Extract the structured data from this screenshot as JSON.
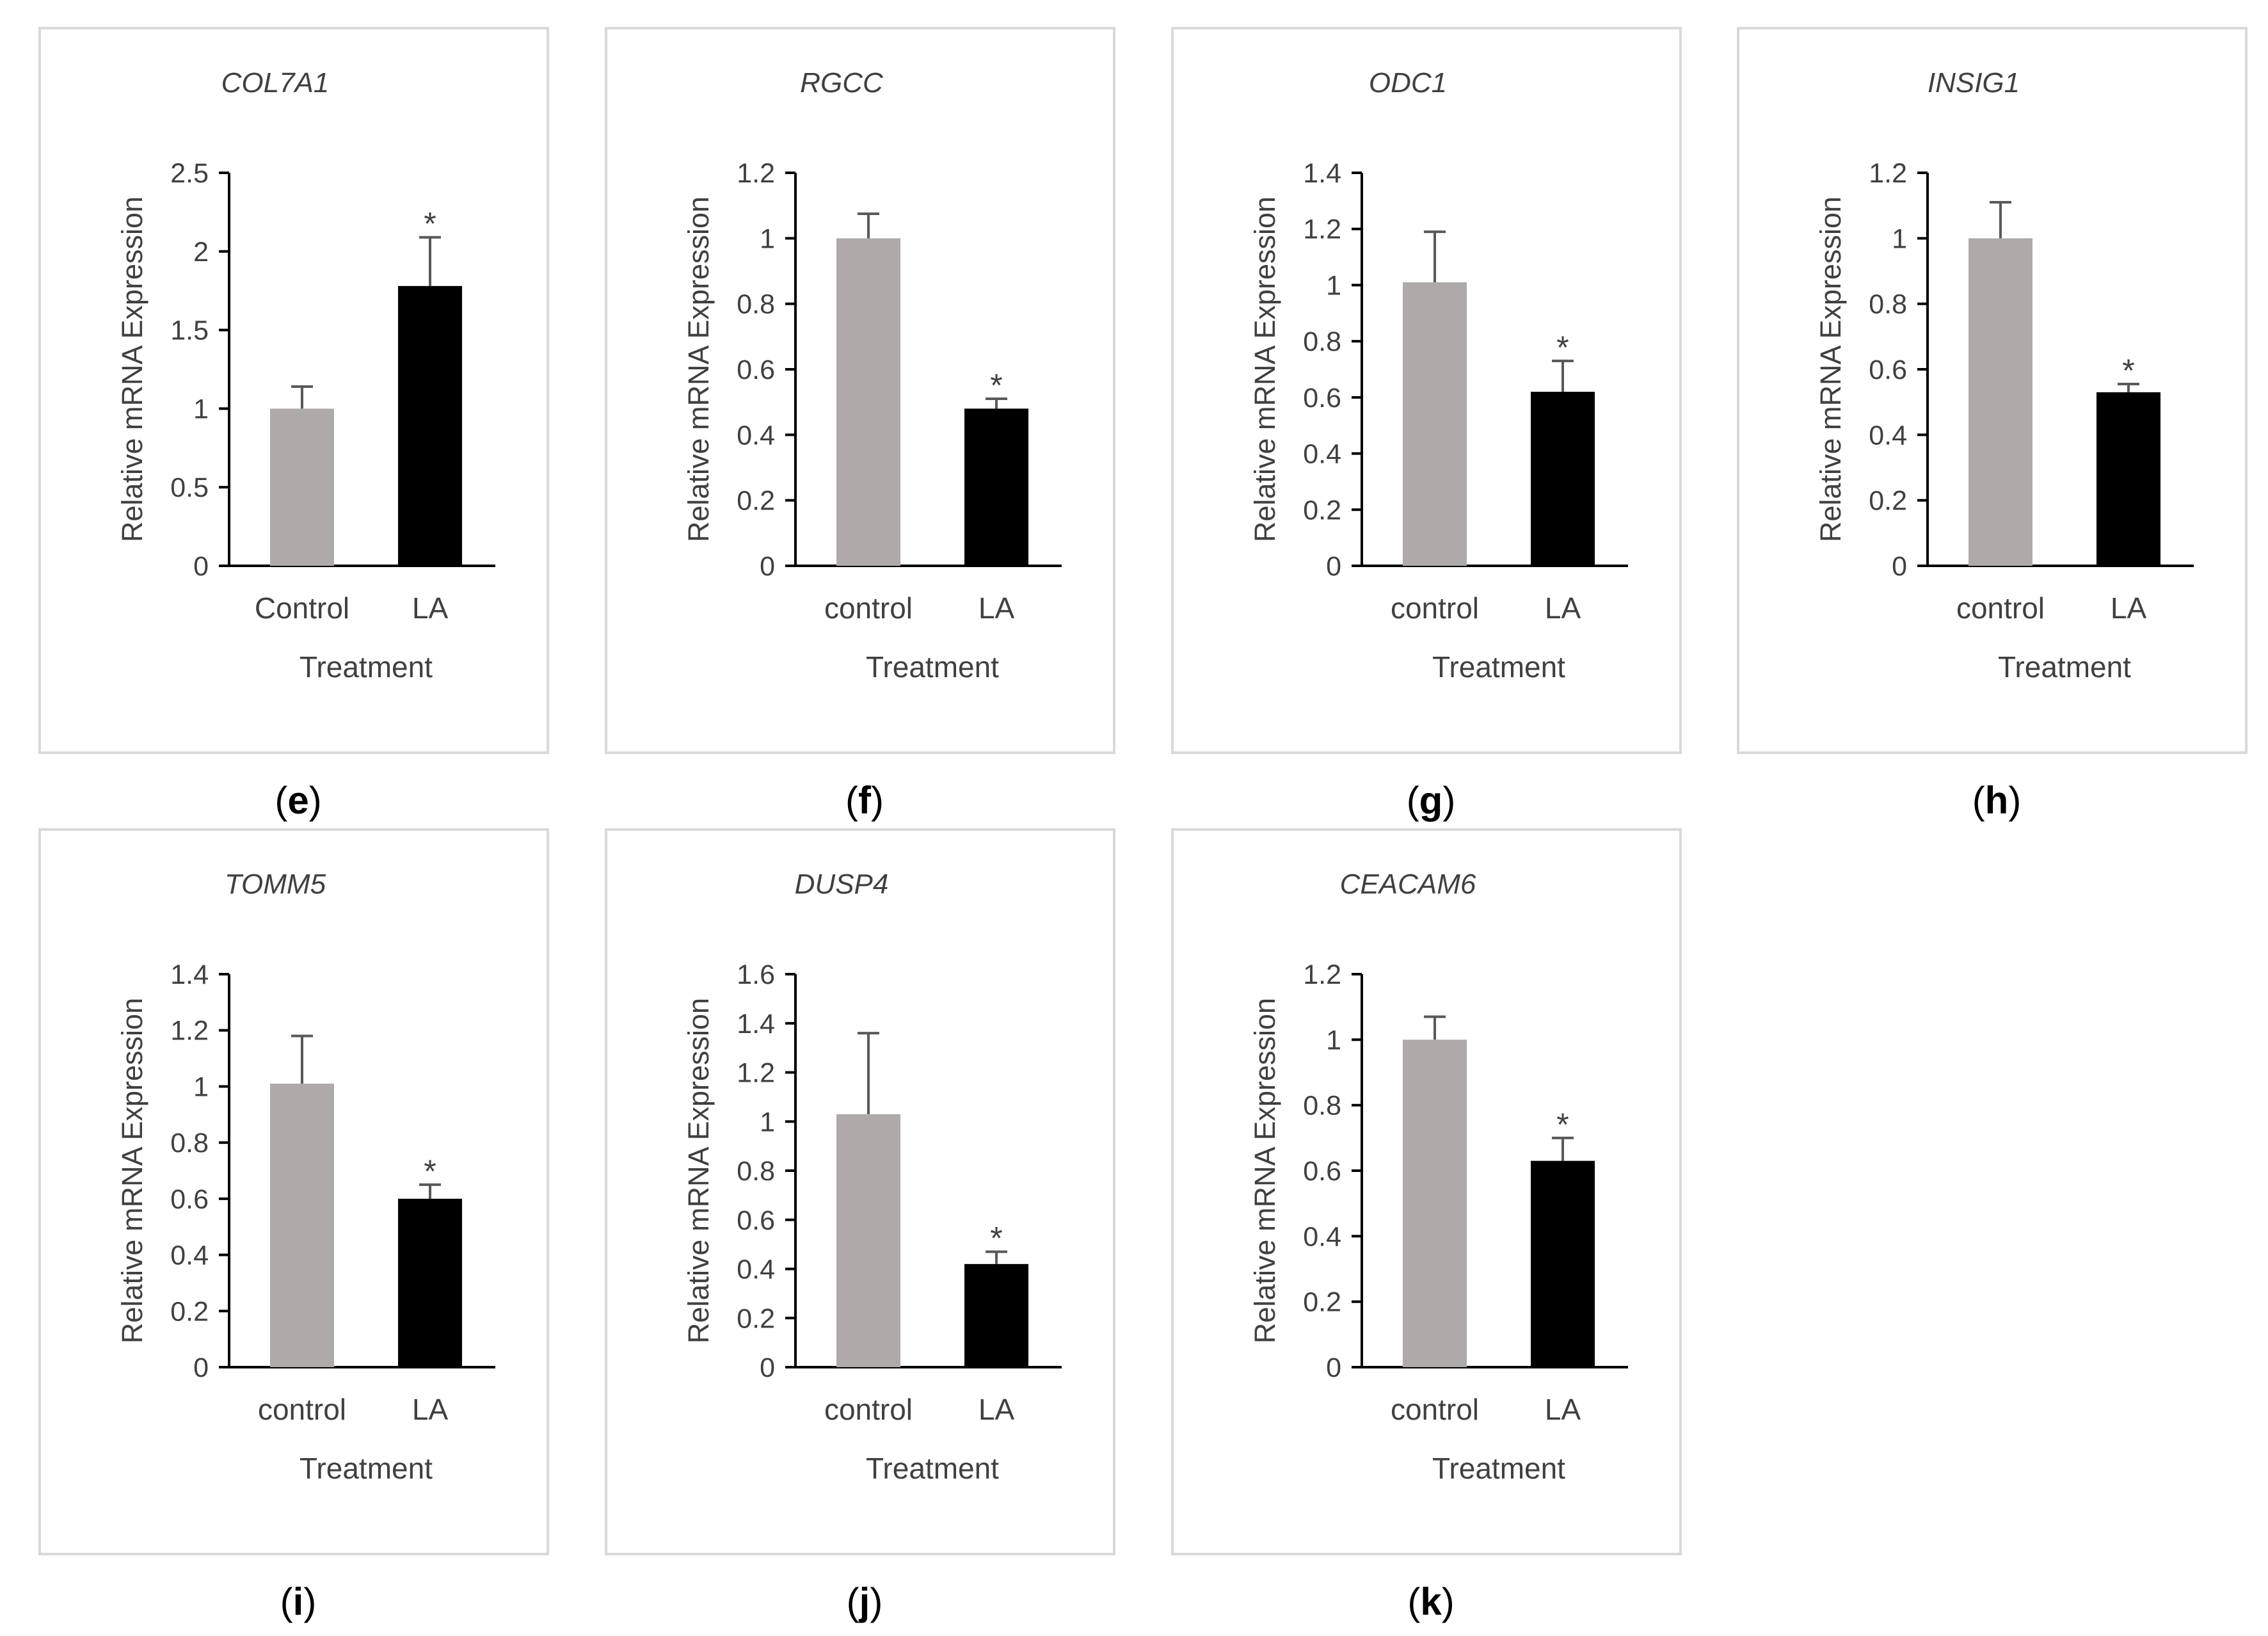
{
  "colors": {
    "control_bar": "#aeaaaa",
    "la_bar": "#000000",
    "axis": "#000000",
    "text": "#404040",
    "panel_border": "#d9d9d9",
    "error_bar": "#595959"
  },
  "chart_data": [
    {
      "type": "bar",
      "panel_label": "e",
      "title": "COL7A1",
      "categories": [
        "Control",
        "LA"
      ],
      "values": [
        1.0,
        1.78
      ],
      "errors": [
        0.14,
        0.31
      ],
      "significance": [
        "",
        "*"
      ],
      "xlabel": "Treatment",
      "ylabel": "Relative mRNA Expression",
      "ylim": [
        0,
        2.5
      ],
      "yticks": [
        "0",
        "0.5",
        "1",
        "1.5",
        "2",
        "2.5"
      ],
      "ytick_step": 0.5
    },
    {
      "type": "bar",
      "panel_label": "f",
      "title": "RGCC",
      "categories": [
        "control",
        "LA"
      ],
      "values": [
        1.0,
        0.48
      ],
      "errors": [
        0.075,
        0.03
      ],
      "significance": [
        "",
        "*"
      ],
      "xlabel": "Treatment",
      "ylabel": "Relative mRNA Expression",
      "ylim": [
        0,
        1.2
      ],
      "yticks": [
        "0",
        "0.2",
        "0.4",
        "0.6",
        "0.8",
        "1",
        "1.2"
      ],
      "ytick_step": 0.2
    },
    {
      "type": "bar",
      "panel_label": "g",
      "title": "ODC1",
      "categories": [
        "control",
        "LA"
      ],
      "values": [
        1.01,
        0.62
      ],
      "errors": [
        0.18,
        0.11
      ],
      "significance": [
        "",
        "*"
      ],
      "xlabel": "Treatment",
      "ylabel": "Relative mRNA Expression",
      "ylim": [
        0,
        1.4
      ],
      "yticks": [
        "0",
        "0.2",
        "0.4",
        "0.6",
        "0.8",
        "1",
        "1.2",
        "1.4"
      ],
      "ytick_step": 0.2
    },
    {
      "type": "bar",
      "panel_label": "h",
      "title": "INSIG1",
      "categories": [
        "control",
        "LA"
      ],
      "values": [
        1.0,
        0.53
      ],
      "errors": [
        0.11,
        0.025
      ],
      "significance": [
        "",
        "*"
      ],
      "xlabel": "Treatment",
      "ylabel": "Relative mRNA Expression",
      "ylim": [
        0,
        1.2
      ],
      "yticks": [
        "0",
        "0.2",
        "0.4",
        "0.6",
        "0.8",
        "1",
        "1.2"
      ],
      "ytick_step": 0.2
    },
    {
      "type": "bar",
      "panel_label": "i",
      "title": "TOMM5",
      "categories": [
        "control",
        "LA"
      ],
      "values": [
        1.01,
        0.6
      ],
      "errors": [
        0.17,
        0.05
      ],
      "significance": [
        "",
        "*"
      ],
      "xlabel": "Treatment",
      "ylabel": "Relative mRNA Expression",
      "ylim": [
        0,
        1.4
      ],
      "yticks": [
        "0",
        "0.2",
        "0.4",
        "0.6",
        "0.8",
        "1",
        "1.2",
        "1.4"
      ],
      "ytick_step": 0.2
    },
    {
      "type": "bar",
      "panel_label": "j",
      "title": "DUSP4",
      "categories": [
        "control",
        "LA"
      ],
      "values": [
        1.03,
        0.42
      ],
      "errors": [
        0.33,
        0.05
      ],
      "significance": [
        "",
        "*"
      ],
      "xlabel": "Treatment",
      "ylabel": "Relative mRNA Expression",
      "ylim": [
        0,
        1.6
      ],
      "yticks": [
        "0",
        "0.2",
        "0.4",
        "0.6",
        "0.8",
        "1",
        "1.2",
        "1.4",
        "1.6"
      ],
      "ytick_step": 0.2
    },
    {
      "type": "bar",
      "panel_label": "k",
      "title": "CEACAM6",
      "categories": [
        "control",
        "LA"
      ],
      "values": [
        1.0,
        0.63
      ],
      "errors": [
        0.07,
        0.07
      ],
      "significance": [
        "",
        "*"
      ],
      "xlabel": "Treatment",
      "ylabel": "Relative mRNA Expression",
      "ylim": [
        0,
        1.2
      ],
      "yticks": [
        "0",
        "0.2",
        "0.4",
        "0.6",
        "0.8",
        "1",
        "1.2"
      ],
      "ytick_step": 0.2
    }
  ]
}
